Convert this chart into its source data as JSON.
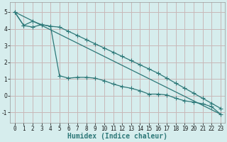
{
  "line1_x": [
    0,
    1,
    2,
    3,
    4,
    5,
    6,
    7,
    8,
    9,
    10,
    11,
    12,
    13,
    14,
    15,
    16,
    17,
    18,
    19,
    20,
    21,
    22,
    23
  ],
  "line1_y": [
    5.0,
    4.2,
    4.1,
    4.25,
    4.15,
    4.1,
    3.85,
    3.6,
    3.35,
    3.1,
    2.85,
    2.6,
    2.35,
    2.1,
    1.85,
    1.6,
    1.35,
    1.05,
    0.75,
    0.45,
    0.15,
    -0.15,
    -0.45,
    -0.75
  ],
  "line2_x": [
    0,
    1,
    2,
    3,
    4,
    5,
    6,
    7,
    8,
    9,
    10,
    11,
    12,
    13,
    14,
    15,
    16,
    17,
    18,
    19,
    20,
    21,
    22,
    23
  ],
  "line2_y": [
    5.0,
    4.2,
    4.45,
    4.25,
    4.15,
    1.2,
    1.05,
    1.1,
    1.1,
    1.05,
    0.9,
    0.7,
    0.55,
    0.45,
    0.3,
    0.1,
    0.1,
    0.05,
    -0.15,
    -0.3,
    -0.38,
    -0.48,
    -0.65,
    -1.1
  ],
  "line3_x": [
    0,
    23
  ],
  "line3_y": [
    5.0,
    -1.1
  ],
  "line_color": "#2d7878",
  "bg_color": "#d6eded",
  "grid_color": "#c8b8b8",
  "xlabel": "Humidex (Indice chaleur)",
  "xlabel_fontsize": 7,
  "xlim": [
    -0.5,
    23.5
  ],
  "ylim": [
    -1.6,
    5.6
  ],
  "yticks": [
    -1,
    0,
    1,
    2,
    3,
    4,
    5
  ],
  "xticks": [
    0,
    1,
    2,
    3,
    4,
    5,
    6,
    7,
    8,
    9,
    10,
    11,
    12,
    13,
    14,
    15,
    16,
    17,
    18,
    19,
    20,
    21,
    22,
    23
  ],
  "tick_fontsize": 5.5,
  "marker_size": 2.2
}
